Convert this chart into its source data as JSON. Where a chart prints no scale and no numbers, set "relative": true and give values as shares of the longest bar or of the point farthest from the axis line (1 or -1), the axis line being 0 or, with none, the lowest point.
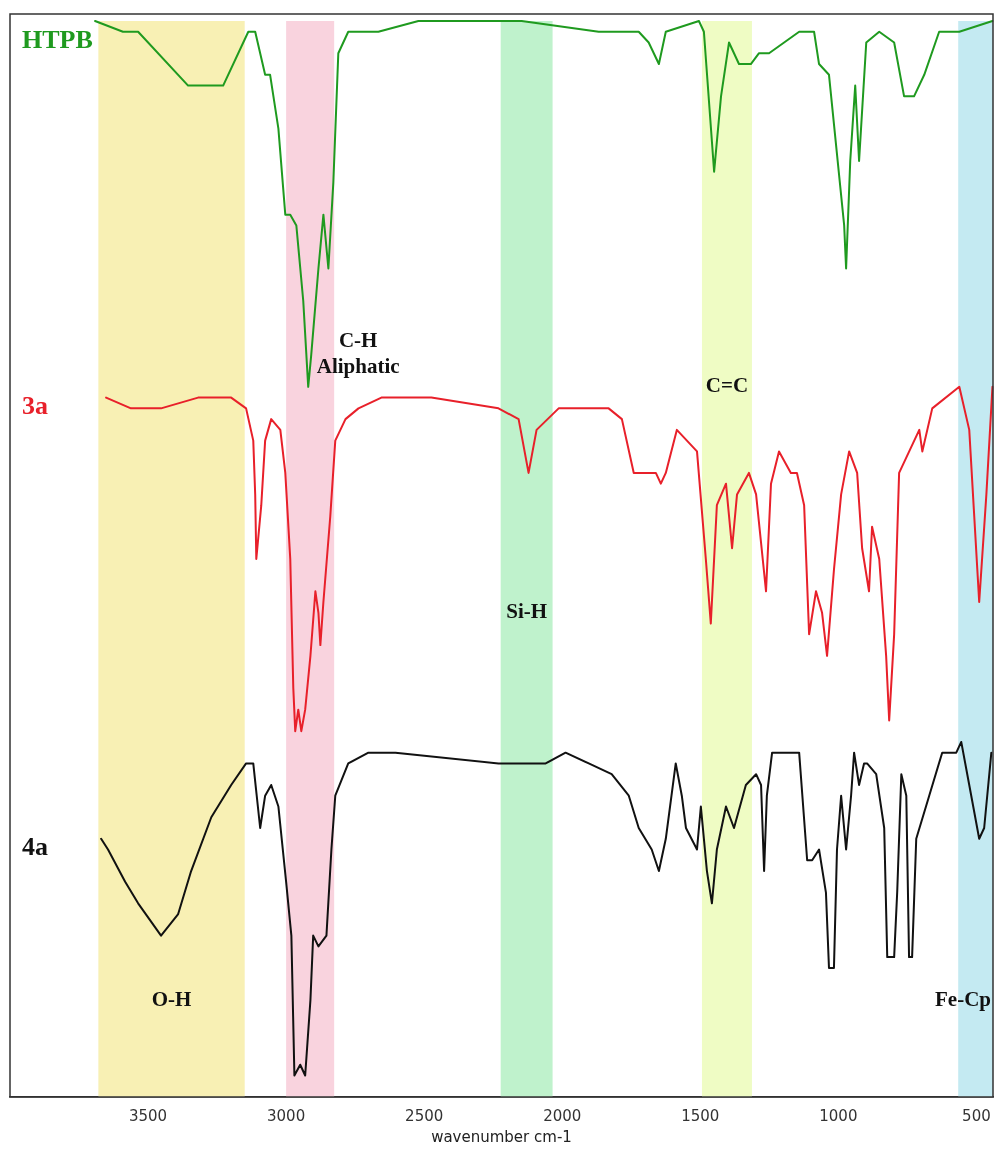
{
  "chart_data": {
    "type": "line",
    "xlabel": "wavenumber cm-1",
    "relative": true,
    "tick_labels": "x",
    "grid": false,
    "legend": false,
    "marker": "none",
    "line_style": "solid",
    "xlim": [
      4000,
      440
    ],
    "xticks": [
      3500,
      3000,
      2500,
      2000,
      1500,
      1000,
      500
    ],
    "bands": [
      {
        "axis": "x",
        "from": 3680,
        "to": 3150,
        "label": "O-H",
        "color": "#f8f0b4"
      },
      {
        "axis": "x",
        "from": 3000,
        "to": 2826,
        "label": "C-H Aliphatic",
        "color": "#f9d3de"
      },
      {
        "axis": "x",
        "from": 2223,
        "to": 2035,
        "label": "Si-H",
        "color": "#bff2cc"
      },
      {
        "axis": "x",
        "from": 1494,
        "to": 1313,
        "label": "C=C",
        "color": "#effcc4"
      },
      {
        "axis": "x",
        "from": 566,
        "to": 440,
        "label": "Fe-Cp",
        "color": "#c4eaf2"
      }
    ],
    "series": [
      {
        "name": "HTPB",
        "color": "#1f9a1f",
        "x": [
          3692,
          3591,
          3536,
          3355,
          3228,
          3137,
          3112,
          3094,
          3076,
          3058,
          3028,
          3003,
          2985,
          2963,
          2938,
          2920,
          2909,
          2883,
          2865,
          2847,
          2829,
          2811,
          2775,
          2666,
          2521,
          2303,
          2147,
          1868,
          1832,
          1723,
          1687,
          1650,
          1625,
          1505,
          1487,
          1450,
          1425,
          1396,
          1360,
          1317,
          1288,
          1251,
          1142,
          1088,
          1070,
          1034,
          979,
          972,
          957,
          939,
          925,
          899,
          852,
          798,
          762,
          726,
          689,
          635,
          562,
          442
        ],
        "values": [
          1.0,
          0.99,
          0.99,
          0.94,
          0.94,
          0.99,
          0.99,
          0.97,
          0.95,
          0.95,
          0.9,
          0.82,
          0.82,
          0.81,
          0.74,
          0.66,
          0.69,
          0.77,
          0.82,
          0.77,
          0.85,
          0.97,
          0.99,
          0.99,
          1.0,
          1.0,
          1.0,
          0.99,
          0.99,
          0.99,
          0.98,
          0.96,
          0.99,
          1.0,
          0.99,
          0.86,
          0.93,
          0.98,
          0.96,
          0.96,
          0.97,
          0.97,
          0.99,
          0.99,
          0.96,
          0.95,
          0.81,
          0.77,
          0.87,
          0.94,
          0.87,
          0.98,
          0.99,
          0.98,
          0.93,
          0.93,
          0.95,
          0.99,
          0.99,
          1.0
        ]
      },
      {
        "name": "3a",
        "color": "#e8202a",
        "x": [
          3652,
          3562,
          3453,
          3319,
          3199,
          3145,
          3119,
          3112,
          3108,
          3090,
          3076,
          3054,
          3021,
          3003,
          2985,
          2974,
          2967,
          2956,
          2945,
          2931,
          2912,
          2894,
          2883,
          2876,
          2865,
          2840,
          2822,
          2785,
          2738,
          2655,
          2474,
          2231,
          2158,
          2122,
          2093,
          2013,
          1832,
          1784,
          1741,
          1697,
          1661,
          1643,
          1625,
          1585,
          1512,
          1480,
          1462,
          1440,
          1407,
          1385,
          1367,
          1324,
          1298,
          1262,
          1244,
          1215,
          1172,
          1150,
          1124,
          1106,
          1081,
          1059,
          1041,
          1016,
          990,
          961,
          932,
          914,
          889,
          878,
          852,
          827,
          816,
          798,
          780,
          707,
          696,
          660,
          562,
          526,
          490,
          464,
          442
        ],
        "values": [
          0.65,
          0.64,
          0.64,
          0.65,
          0.65,
          0.64,
          0.61,
          0.56,
          0.5,
          0.55,
          0.61,
          0.63,
          0.62,
          0.58,
          0.5,
          0.38,
          0.34,
          0.36,
          0.34,
          0.36,
          0.41,
          0.47,
          0.45,
          0.42,
          0.46,
          0.54,
          0.61,
          0.63,
          0.64,
          0.65,
          0.65,
          0.64,
          0.63,
          0.58,
          0.62,
          0.64,
          0.64,
          0.63,
          0.58,
          0.58,
          0.58,
          0.57,
          0.58,
          0.62,
          0.6,
          0.5,
          0.44,
          0.55,
          0.57,
          0.51,
          0.56,
          0.58,
          0.56,
          0.47,
          0.57,
          0.6,
          0.58,
          0.58,
          0.55,
          0.43,
          0.47,
          0.45,
          0.41,
          0.49,
          0.56,
          0.6,
          0.58,
          0.51,
          0.47,
          0.53,
          0.5,
          0.41,
          0.35,
          0.43,
          0.58,
          0.62,
          0.6,
          0.64,
          0.66,
          0.62,
          0.46,
          0.56,
          0.66
        ]
      },
      {
        "name": "4a",
        "color": "#111111",
        "x": [
          3670,
          3645,
          3583,
          3536,
          3453,
          3391,
          3344,
          3271,
          3199,
          3145,
          3119,
          3094,
          3076,
          3054,
          3028,
          3000,
          2981,
          2970,
          2949,
          2931,
          2912,
          2902,
          2883,
          2854,
          2836,
          2822,
          2775,
          2702,
          2604,
          2231,
          2060,
          1988,
          1904,
          1821,
          1759,
          1723,
          1676,
          1650,
          1625,
          1589,
          1567,
          1552,
          1512,
          1498,
          1476,
          1458,
          1440,
          1407,
          1378,
          1335,
          1298,
          1280,
          1269,
          1259,
          1240,
          1204,
          1142,
          1113,
          1095,
          1070,
          1045,
          1034,
          1016,
          1005,
          990,
          972,
          954,
          943,
          925,
          907,
          896,
          863,
          834,
          823,
          798,
          787,
          772,
          754,
          744,
          733,
          718,
          671,
          624,
          573,
          555,
          526,
          490,
          472,
          446
        ],
        "values": [
          0.24,
          0.23,
          0.2,
          0.18,
          0.15,
          0.17,
          0.21,
          0.26,
          0.29,
          0.31,
          0.31,
          0.25,
          0.28,
          0.29,
          0.27,
          0.2,
          0.15,
          0.02,
          0.03,
          0.02,
          0.09,
          0.15,
          0.14,
          0.15,
          0.23,
          0.28,
          0.31,
          0.32,
          0.32,
          0.31,
          0.31,
          0.32,
          0.31,
          0.3,
          0.28,
          0.25,
          0.23,
          0.21,
          0.24,
          0.31,
          0.28,
          0.25,
          0.23,
          0.27,
          0.21,
          0.18,
          0.23,
          0.27,
          0.25,
          0.29,
          0.3,
          0.29,
          0.21,
          0.28,
          0.32,
          0.32,
          0.32,
          0.22,
          0.22,
          0.23,
          0.19,
          0.12,
          0.12,
          0.23,
          0.28,
          0.23,
          0.28,
          0.32,
          0.29,
          0.31,
          0.31,
          0.3,
          0.25,
          0.13,
          0.13,
          0.19,
          0.3,
          0.28,
          0.13,
          0.13,
          0.24,
          0.28,
          0.32,
          0.32,
          0.33,
          0.29,
          0.24,
          0.25,
          0.32
        ]
      }
    ]
  }
}
